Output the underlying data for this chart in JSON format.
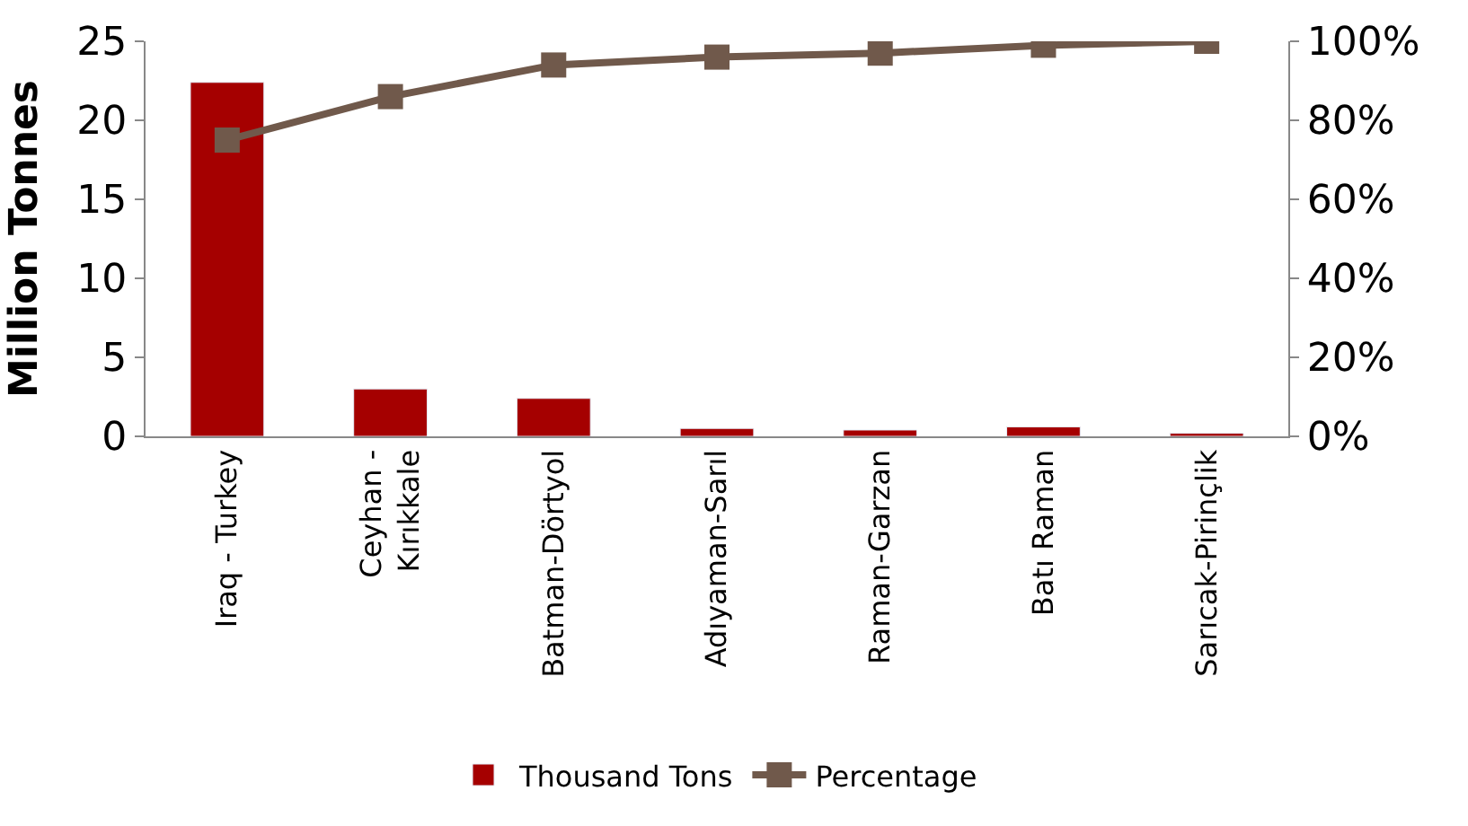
{
  "chart_data": {
    "type": "bar",
    "ylabel": "Million Tonnes",
    "categories": [
      "Iraq - Turkey",
      "Ceyhan - Kırıkkale",
      "Batman-Dörtyol",
      "Adıyaman-Sarıl",
      "Raman-Garzan",
      "Batı Raman",
      "Sarıcak-Pirinçlik"
    ],
    "series": [
      {
        "name": "Thousand Tons",
        "color": "#a50000",
        "values": [
          22.4,
          3.0,
          2.4,
          0.5,
          0.4,
          0.6,
          0.2
        ]
      },
      {
        "name": "Percentage",
        "color": "#70594b",
        "type": "line",
        "axis": "y2",
        "marker": "square",
        "values": [
          75,
          86,
          94,
          96,
          97,
          99,
          100
        ]
      }
    ],
    "ylim": [
      0,
      25
    ],
    "yticks": [
      0,
      5,
      10,
      15,
      20,
      25
    ],
    "y2lim": [
      0,
      100
    ],
    "y2ticks": [
      {
        "value": 0,
        "label": "0%"
      },
      {
        "value": 20,
        "label": "20%"
      },
      {
        "value": 40,
        "label": "40%"
      },
      {
        "value": 60,
        "label": "60%"
      },
      {
        "value": 80,
        "label": "80%"
      },
      {
        "value": 100,
        "label": "100%"
      }
    ],
    "legend": "bottom"
  }
}
